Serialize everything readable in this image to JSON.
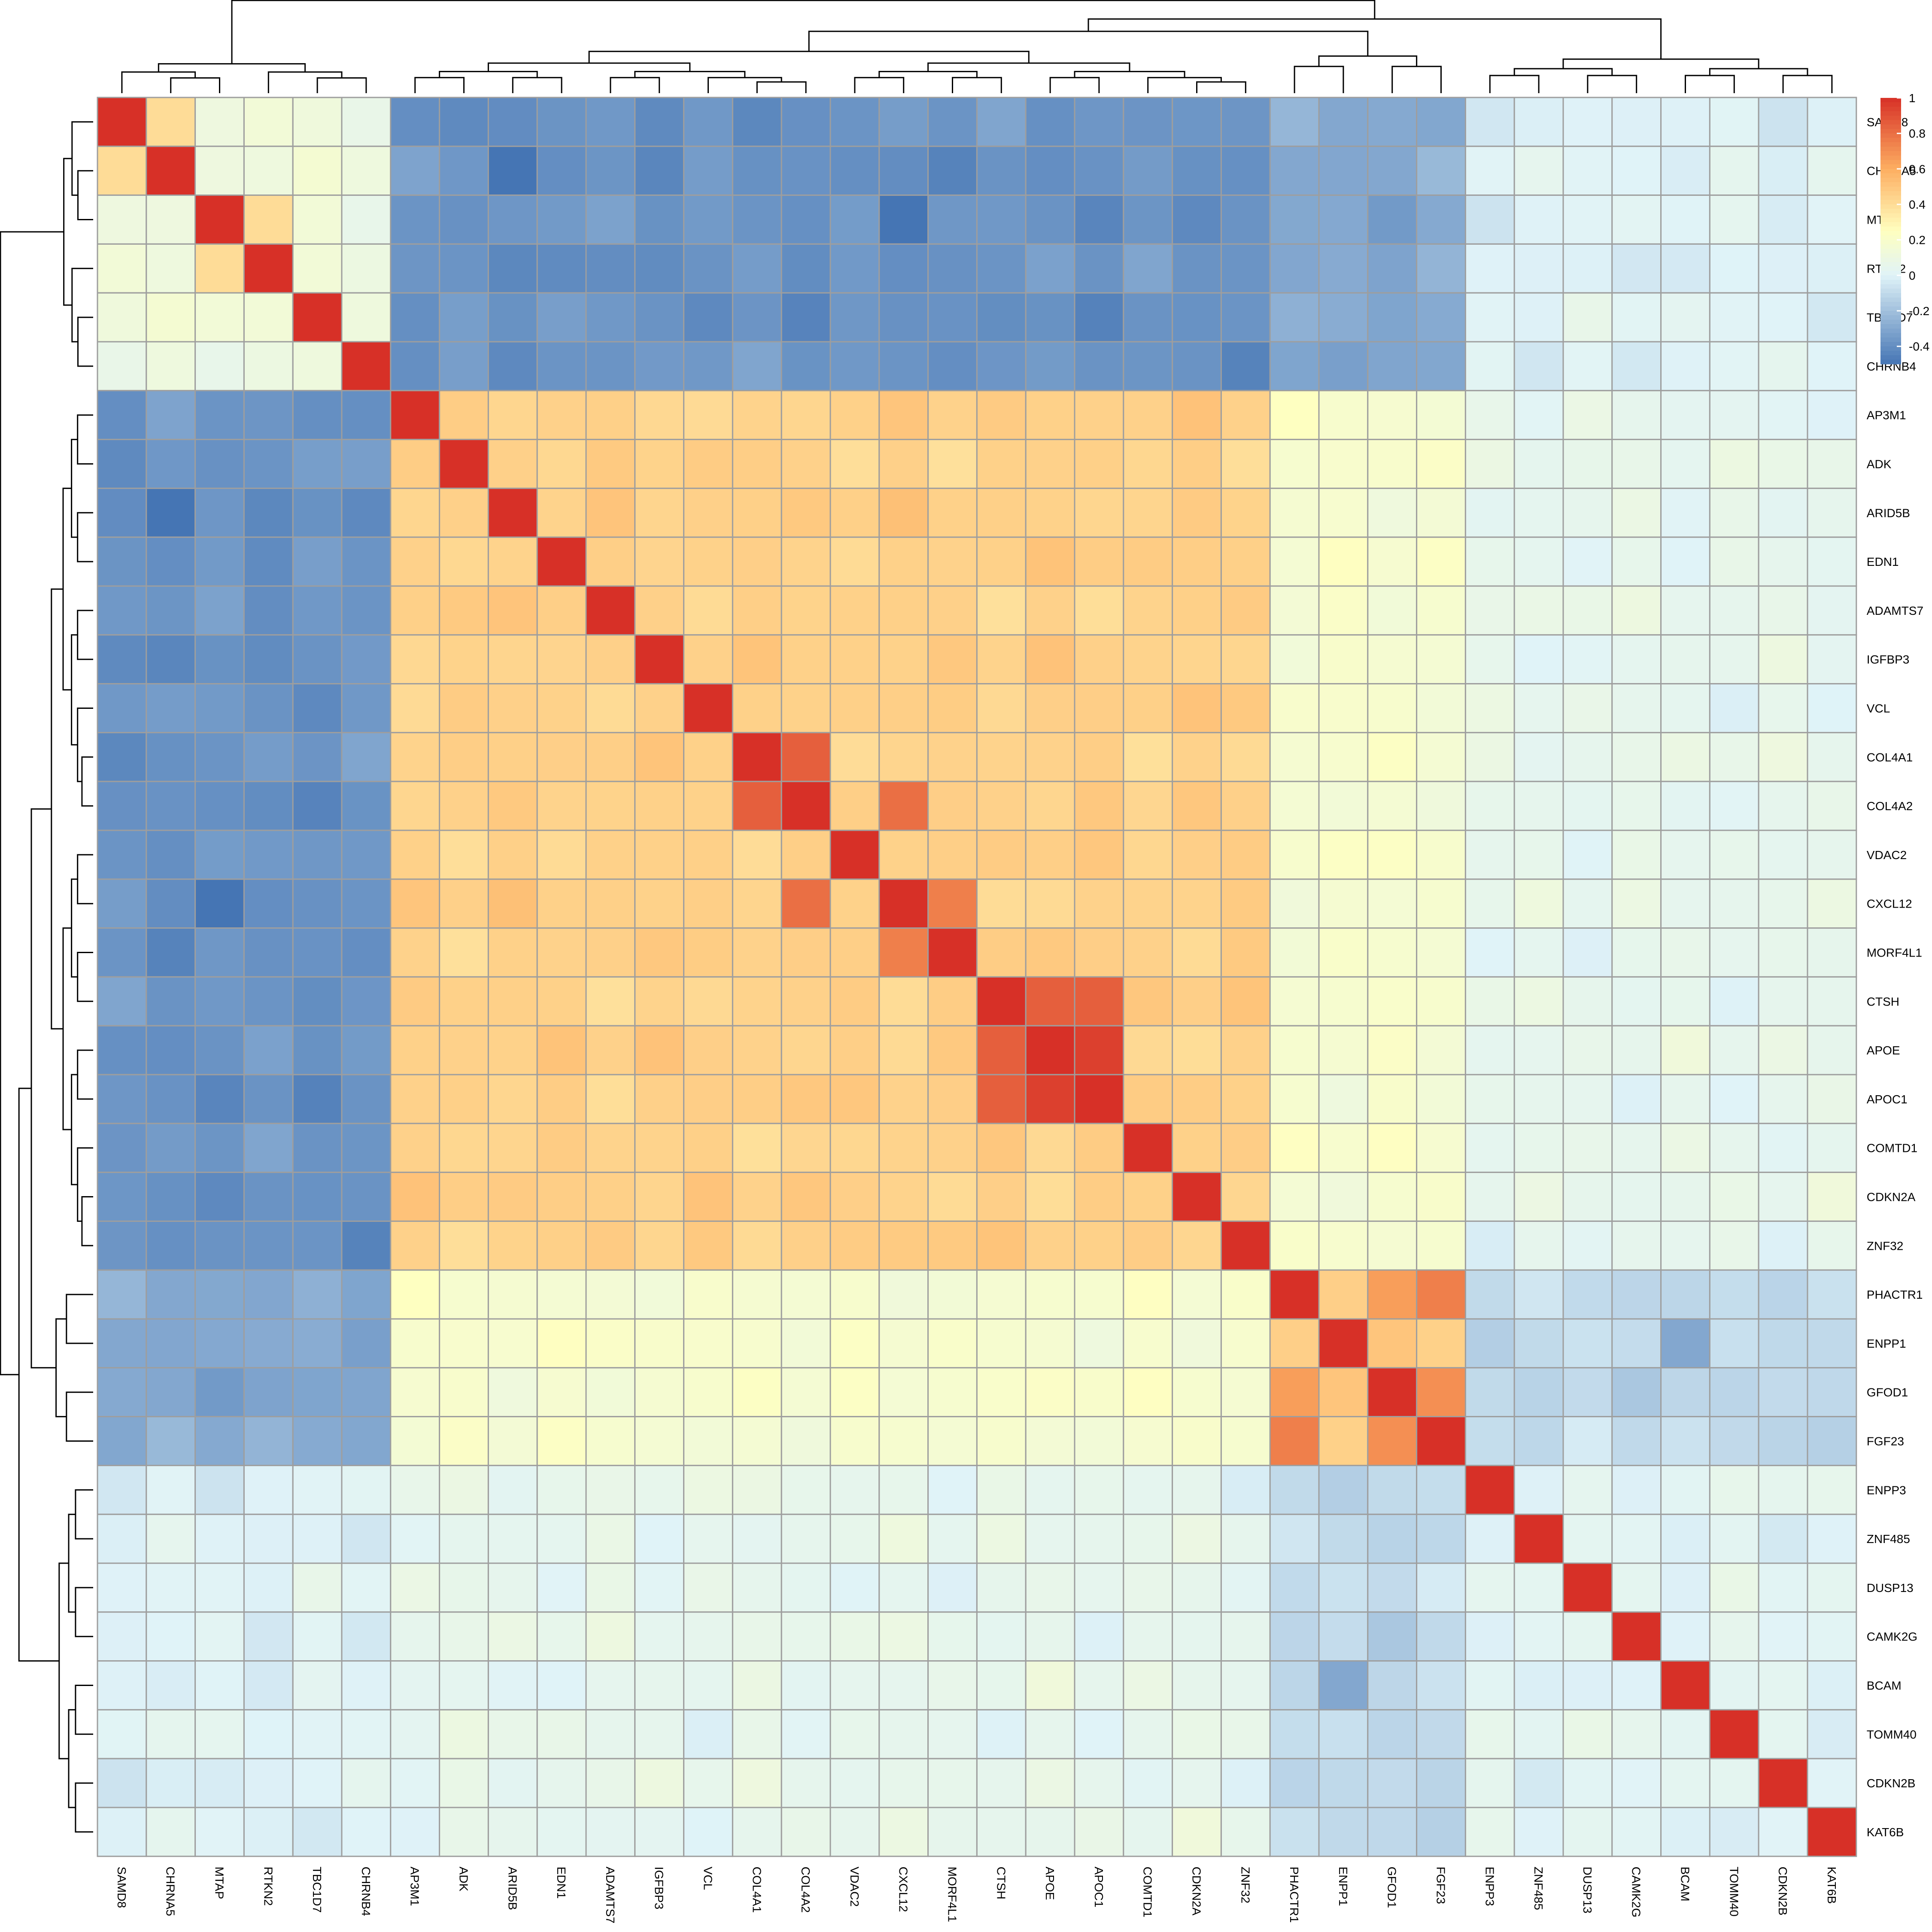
{
  "chart_data": {
    "type": "heatmap",
    "title": "",
    "labels": [
      "SAMD8",
      "CHRNA5",
      "MTAP",
      "RTKN2",
      "TBC1D7",
      "CHRNB4",
      "AP3M1",
      "ADK",
      "ARID5B",
      "EDN1",
      "ADAMTS7",
      "IGFBP3",
      "VCL",
      "COL4A1",
      "COL4A2",
      "VDAC2",
      "CXCL12",
      "MORF4L1",
      "CTSH",
      "APOE",
      "APOC1",
      "COMTD1",
      "CDKN2A",
      "ZNF32",
      "PHACTR1",
      "ENPP1",
      "GFOD1",
      "FGF23",
      "ENPP3",
      "ZNF485",
      "DUSP13",
      "CAMK2G",
      "BCAM",
      "TOMM40",
      "CDKN2B",
      "KAT6B"
    ],
    "groups": [
      0,
      0,
      0,
      0,
      0,
      0,
      1,
      1,
      1,
      1,
      1,
      1,
      1,
      1,
      1,
      1,
      1,
      1,
      1,
      1,
      1,
      1,
      1,
      1,
      2,
      2,
      2,
      2,
      3,
      3,
      3,
      3,
      3,
      3,
      3,
      3
    ],
    "clusters": {
      "g0": [
        "SAMD8",
        "CHRNA5",
        "MTAP",
        "RTKN2",
        "TBC1D7",
        "CHRNB4"
      ],
      "g1": [
        "AP3M1",
        "ADK",
        "ARID5B",
        "EDN1",
        "ADAMTS7",
        "IGFBP3",
        "VCL",
        "COL4A1",
        "COL4A2",
        "VDAC2",
        "CXCL12",
        "MORF4L1",
        "CTSH",
        "APOE",
        "APOC1",
        "COMTD1",
        "CDKN2A",
        "ZNF32"
      ],
      "g2": [
        "PHACTR1",
        "ENPP1",
        "GFOD1",
        "FGF23"
      ],
      "g3": [
        "ENPP3",
        "ZNF485",
        "DUSP13",
        "CAMK2G",
        "BCAM",
        "TOMM40",
        "CDKN2B",
        "KAT6B"
      ]
    },
    "block_correlation": [
      [
        0.12,
        -0.38,
        -0.3,
        0.0
      ],
      [
        -0.38,
        0.45,
        0.18,
        0.05
      ],
      [
        -0.3,
        0.18,
        0.45,
        -0.1
      ],
      [
        0.0,
        0.05,
        -0.1,
        0.02
      ]
    ],
    "notable_pairs": [
      {
        "a": "SAMD8",
        "b": "CHRNA5",
        "value": 0.4
      },
      {
        "a": "MTAP",
        "b": "RTKN2",
        "value": 0.4
      },
      {
        "a": "COL4A1",
        "b": "COL4A2",
        "value": 0.85
      },
      {
        "a": "COL4A2",
        "b": "CXCL12",
        "value": 0.8
      },
      {
        "a": "CXCL12",
        "b": "MORF4L1",
        "value": 0.75
      },
      {
        "a": "CTSH",
        "b": "APOE",
        "value": 0.85
      },
      {
        "a": "CTSH",
        "b": "APOC1",
        "value": 0.85
      },
      {
        "a": "APOE",
        "b": "APOC1",
        "value": 0.95
      },
      {
        "a": "PHACTR1",
        "b": "FGF23",
        "value": 0.75
      },
      {
        "a": "PHACTR1",
        "b": "GFOD1",
        "value": 0.65
      },
      {
        "a": "GFOD1",
        "b": "FGF23",
        "value": 0.7
      },
      {
        "a": "ENPP1",
        "b": "GFOD1",
        "value": 0.5
      },
      {
        "a": "CHRNA5",
        "b": "ARID5B",
        "value": -0.5
      },
      {
        "a": "MTAP",
        "b": "CXCL12",
        "value": -0.5
      },
      {
        "a": "ENPP1",
        "b": "BCAM",
        "value": -0.3
      }
    ],
    "legend": {
      "ticks": [
        "1",
        "0.8",
        "0.6",
        "0.4",
        "0.2",
        "0",
        "-0.2",
        "-0.4"
      ],
      "tick_values": [
        1,
        0.8,
        0.6,
        0.4,
        0.2,
        0,
        -0.2,
        -0.4
      ],
      "range": [
        -0.5,
        1
      ],
      "colors": [
        "#4575b4",
        "#e0f3f8",
        "#ffffbf",
        "#fdae61",
        "#d73027"
      ],
      "placement": "top-right"
    },
    "dendrogram": "both"
  }
}
